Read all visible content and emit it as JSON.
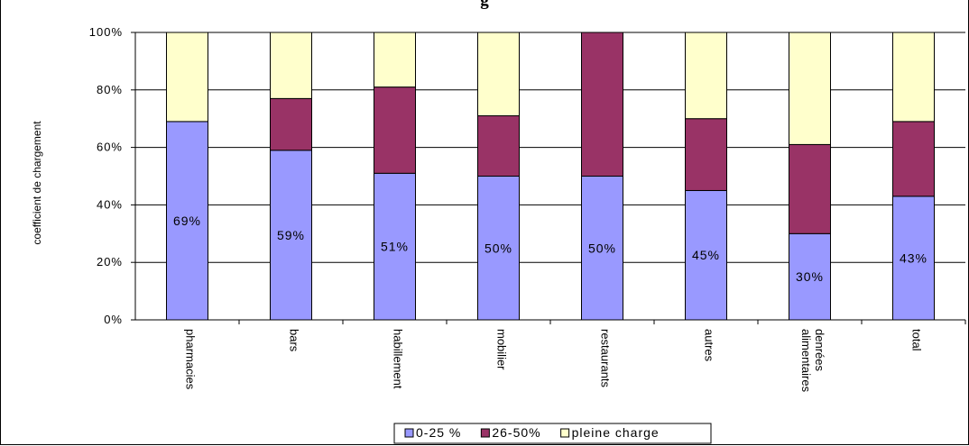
{
  "chart_data": {
    "type": "bar",
    "stacked": true,
    "percent_stacked": true,
    "title_fragment": "g",
    "ylabel": "coefficient de chargement",
    "ylim": [
      0,
      100
    ],
    "yticks": [
      "0%",
      "20%",
      "40%",
      "60%",
      "80%",
      "100%"
    ],
    "categories": [
      "pharmacies",
      "bars",
      "habillement",
      "mobilier",
      "restaurants",
      "autres",
      "denrées alimentaires",
      "total"
    ],
    "series": [
      {
        "name": "0-25 %",
        "color": "#9999ff",
        "values": [
          69,
          59,
          51,
          50,
          50,
          45,
          30,
          43
        ]
      },
      {
        "name": "26-50%",
        "color": "#993366",
        "values": [
          0,
          18,
          30,
          21,
          50,
          25,
          31,
          26
        ]
      },
      {
        "name": "pleine charge",
        "color": "#ffffcc",
        "values": [
          31,
          23,
          19,
          29,
          0,
          30,
          39,
          31
        ]
      }
    ],
    "data_labels": [
      "69%",
      "59%",
      "51%",
      "50%",
      "50%",
      "45%",
      "30%",
      "43%"
    ],
    "grid": true,
    "legend_position": "bottom"
  }
}
